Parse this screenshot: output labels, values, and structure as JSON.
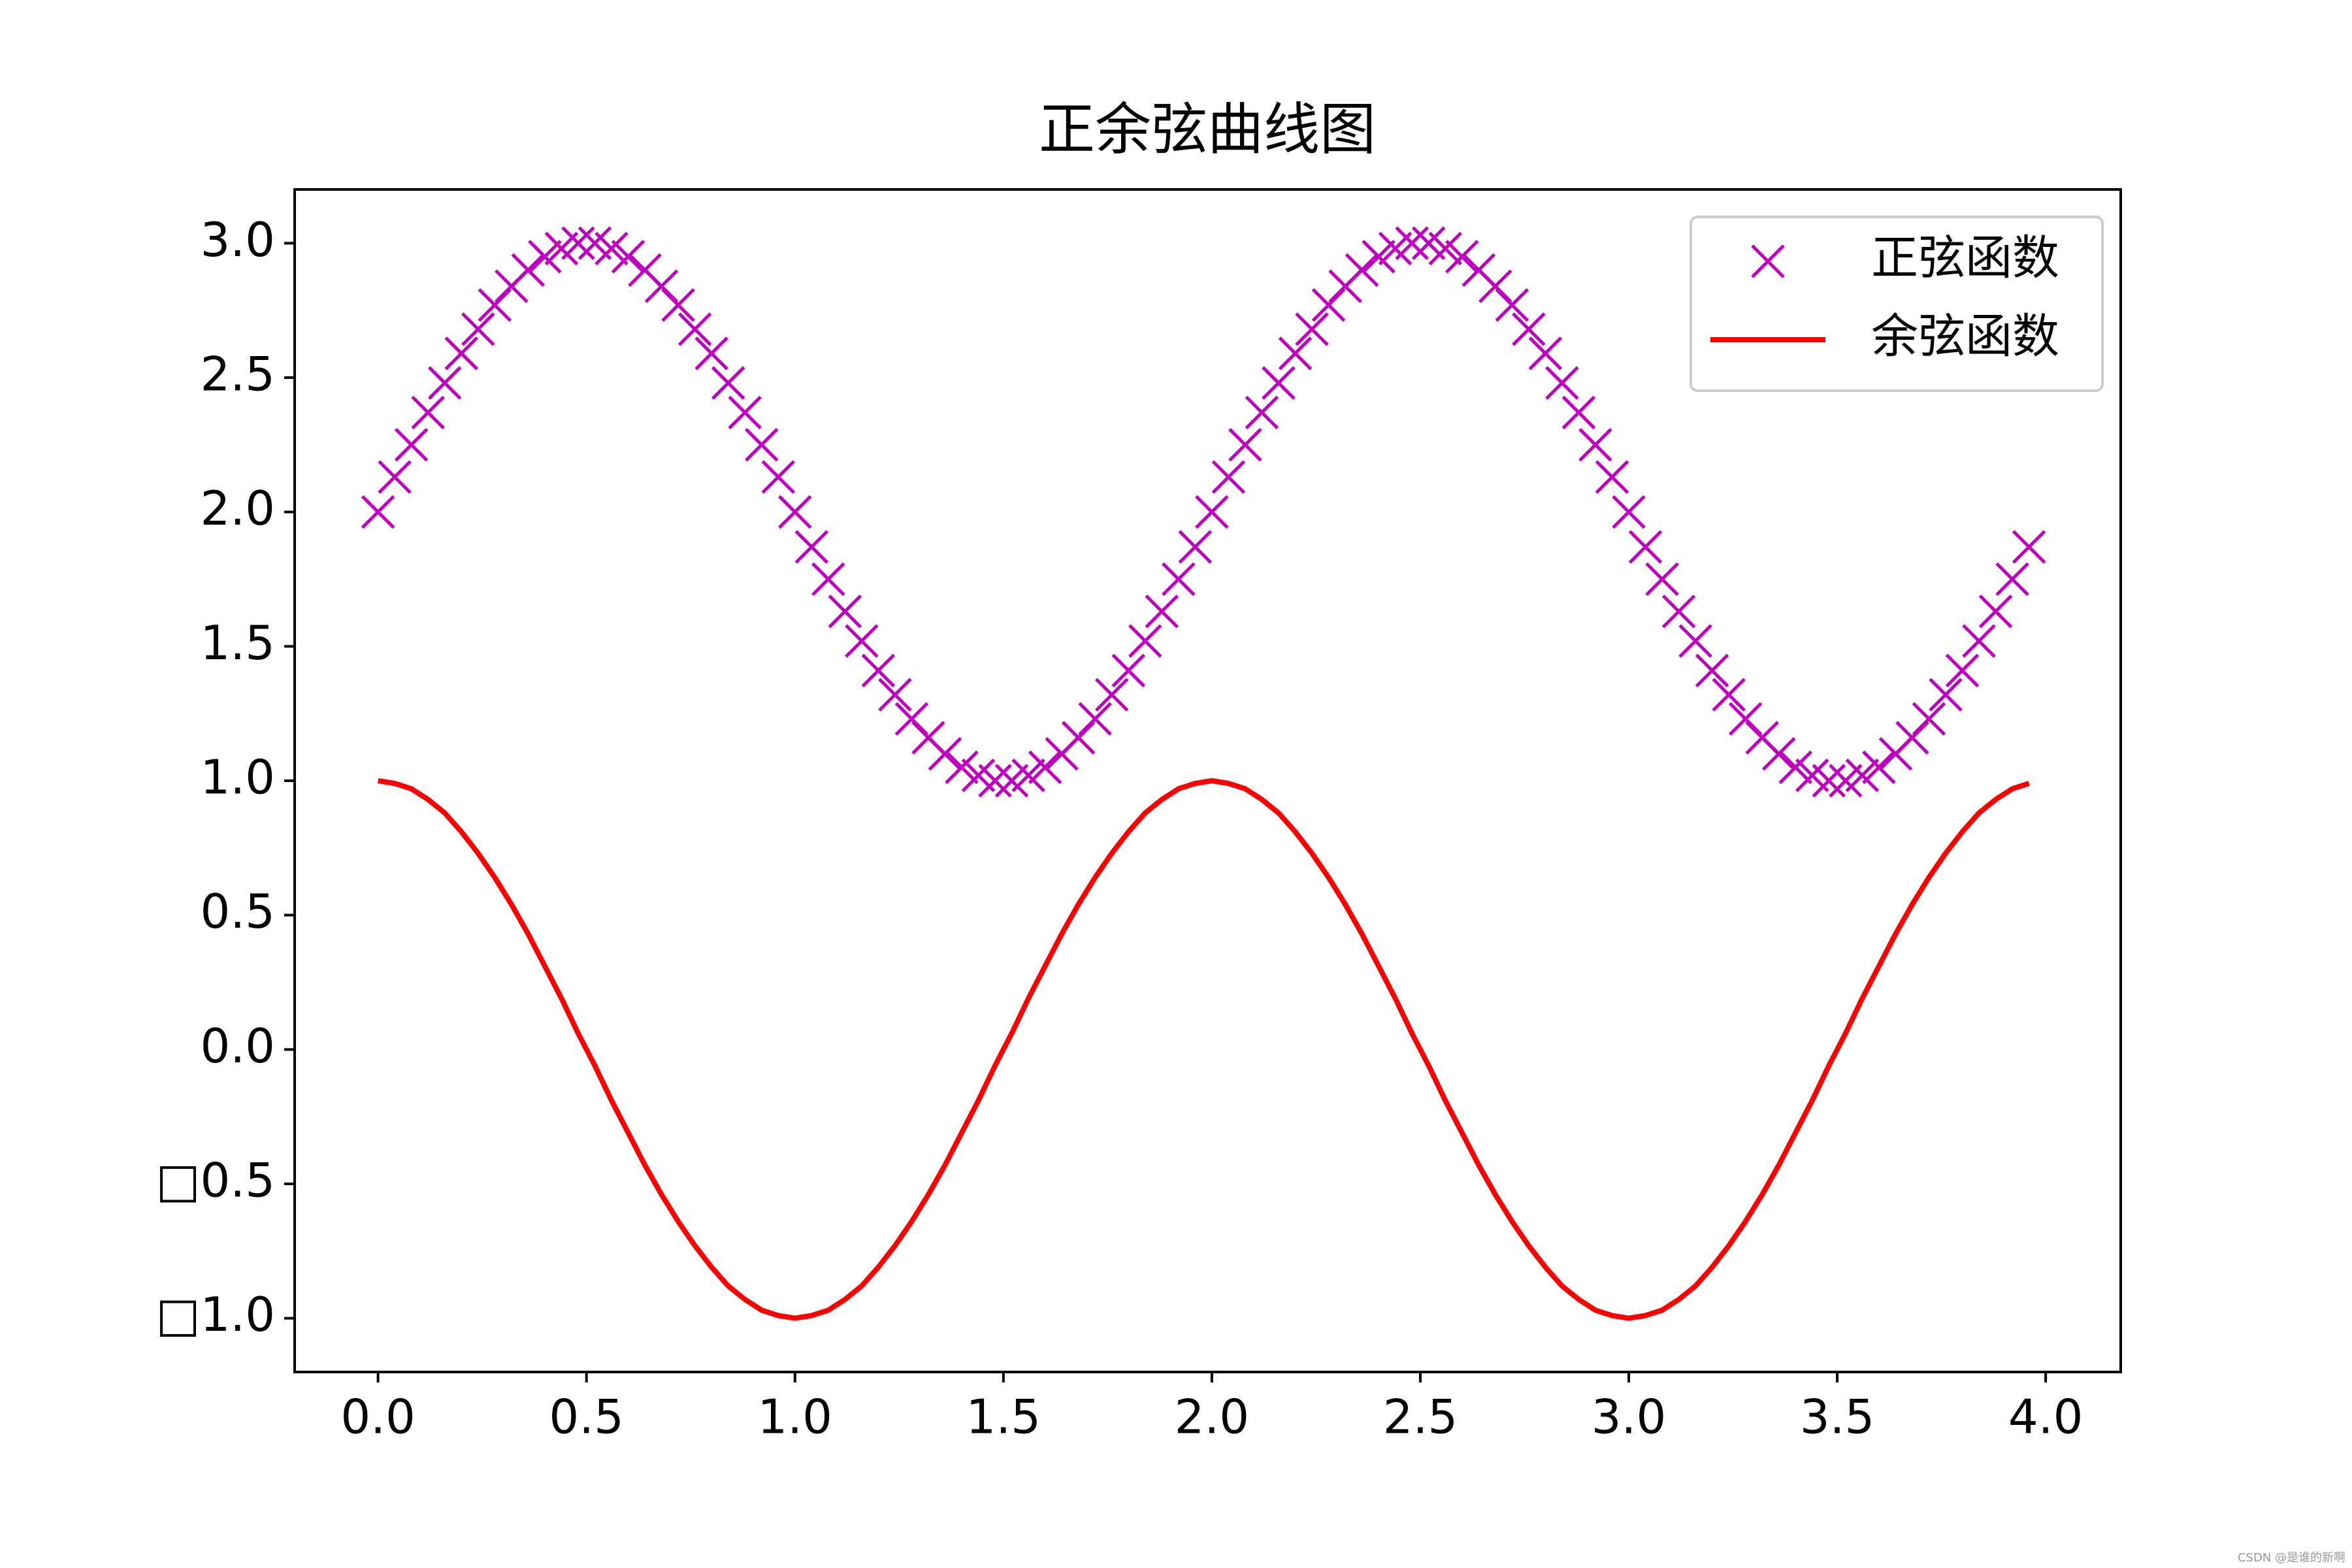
{
  "chart_data": {
    "type": "line",
    "title": "正余弦曲线图",
    "x": [
      0,
      0.04,
      0.08,
      0.12,
      0.16,
      0.2,
      0.24,
      0.28,
      0.32,
      0.36,
      0.4,
      0.44,
      0.48,
      0.52,
      0.56,
      0.6,
      0.64,
      0.68,
      0.72,
      0.76,
      0.8,
      0.84,
      0.88,
      0.92,
      0.96,
      1.0,
      1.04,
      1.08,
      1.12,
      1.16,
      1.2,
      1.24,
      1.28,
      1.32,
      1.36,
      1.4,
      1.44,
      1.48,
      1.52,
      1.56,
      1.6,
      1.64,
      1.68,
      1.72,
      1.76,
      1.8,
      1.84,
      1.88,
      1.92,
      1.96,
      2.0,
      2.04,
      2.08,
      2.12,
      2.16,
      2.2,
      2.24,
      2.28,
      2.32,
      2.36,
      2.4,
      2.44,
      2.48,
      2.52,
      2.56,
      2.6,
      2.64,
      2.68,
      2.72,
      2.76,
      2.8,
      2.84,
      2.88,
      2.92,
      2.96,
      3.0,
      3.04,
      3.08,
      3.12,
      3.16,
      3.2,
      3.24,
      3.28,
      3.32,
      3.36,
      3.4,
      3.44,
      3.48,
      3.52,
      3.56,
      3.6,
      3.64,
      3.68,
      3.72,
      3.76,
      3.8,
      3.84,
      3.88,
      3.92,
      3.96
    ],
    "series": [
      {
        "name": "正弦函数",
        "color": "#bf00bf",
        "marker": "x",
        "linestyle": "none",
        "values": [
          2,
          2.13,
          2.25,
          2.37,
          2.48,
          2.59,
          2.68,
          2.77,
          2.84,
          2.9,
          2.95,
          2.98,
          3.0,
          3.0,
          2.98,
          2.95,
          2.9,
          2.84,
          2.77,
          2.68,
          2.59,
          2.48,
          2.37,
          2.25,
          2.13,
          2,
          1.87,
          1.75,
          1.63,
          1.52,
          1.41,
          1.32,
          1.23,
          1.16,
          1.1,
          1.05,
          1.02,
          1.0,
          1.0,
          1.02,
          1.05,
          1.1,
          1.16,
          1.23,
          1.32,
          1.41,
          1.52,
          1.63,
          1.75,
          1.87,
          2,
          2.13,
          2.25,
          2.37,
          2.48,
          2.59,
          2.68,
          2.77,
          2.84,
          2.9,
          2.95,
          2.98,
          3.0,
          3.0,
          2.98,
          2.95,
          2.9,
          2.84,
          2.77,
          2.68,
          2.59,
          2.48,
          2.37,
          2.25,
          2.13,
          2,
          1.87,
          1.75,
          1.63,
          1.52,
          1.41,
          1.32,
          1.23,
          1.16,
          1.1,
          1.05,
          1.02,
          1.0,
          1.0,
          1.02,
          1.05,
          1.1,
          1.16,
          1.23,
          1.32,
          1.41,
          1.52,
          1.63,
          1.75,
          1.87
        ]
      },
      {
        "name": "余弦函数",
        "color": "#ff0000",
        "marker": "none",
        "linestyle": "solid",
        "values": [
          1,
          0.99,
          0.97,
          0.93,
          0.88,
          0.81,
          0.73,
          0.64,
          0.54,
          0.43,
          0.31,
          0.19,
          0.06,
          -0.06,
          -0.19,
          -0.31,
          -0.43,
          -0.54,
          -0.64,
          -0.73,
          -0.81,
          -0.88,
          -0.93,
          -0.97,
          -0.99,
          -1,
          -0.99,
          -0.97,
          -0.93,
          -0.88,
          -0.81,
          -0.73,
          -0.64,
          -0.54,
          -0.43,
          -0.31,
          -0.19,
          -0.06,
          0.06,
          0.19,
          0.31,
          0.43,
          0.54,
          0.64,
          0.73,
          0.81,
          0.88,
          0.93,
          0.97,
          0.99,
          1,
          0.99,
          0.97,
          0.93,
          0.88,
          0.81,
          0.73,
          0.64,
          0.54,
          0.43,
          0.31,
          0.19,
          0.06,
          -0.06,
          -0.19,
          -0.31,
          -0.43,
          -0.54,
          -0.64,
          -0.73,
          -0.81,
          -0.88,
          -0.93,
          -0.97,
          -0.99,
          -1,
          -0.99,
          -0.97,
          -0.93,
          -0.88,
          -0.81,
          -0.73,
          -0.64,
          -0.54,
          -0.43,
          -0.31,
          -0.19,
          -0.06,
          0.06,
          0.19,
          0.31,
          0.43,
          0.54,
          0.64,
          0.73,
          0.81,
          0.88,
          0.93,
          0.97,
          0.99
        ]
      }
    ],
    "xlim": [
      -0.2,
      4.18
    ],
    "ylim": [
      -1.2,
      3.2
    ],
    "xticks": [
      {
        "value": 0,
        "label": "0.0"
      },
      {
        "value": 0.5,
        "label": "0.5"
      },
      {
        "value": 1,
        "label": "1.0"
      },
      {
        "value": 1.5,
        "label": "1.5"
      },
      {
        "value": 2,
        "label": "2.0"
      },
      {
        "value": 2.5,
        "label": "2.5"
      },
      {
        "value": 3,
        "label": "3.0"
      },
      {
        "value": 3.5,
        "label": "3.5"
      },
      {
        "value": 4,
        "label": "4.0"
      }
    ],
    "yticks": [
      {
        "value": -1,
        "label": "□1.0"
      },
      {
        "value": -0.5,
        "label": "□0.5"
      },
      {
        "value": 0,
        "label": "0.0"
      },
      {
        "value": 0.5,
        "label": "0.5"
      },
      {
        "value": 1,
        "label": "1.0"
      },
      {
        "value": 1.5,
        "label": "1.5"
      },
      {
        "value": 2,
        "label": "2.0"
      },
      {
        "value": 2.5,
        "label": "2.5"
      },
      {
        "value": 3,
        "label": "3.0"
      }
    ],
    "grid": false,
    "legend": "upper right",
    "watermark": "CSDN @是谁的新啊"
  }
}
